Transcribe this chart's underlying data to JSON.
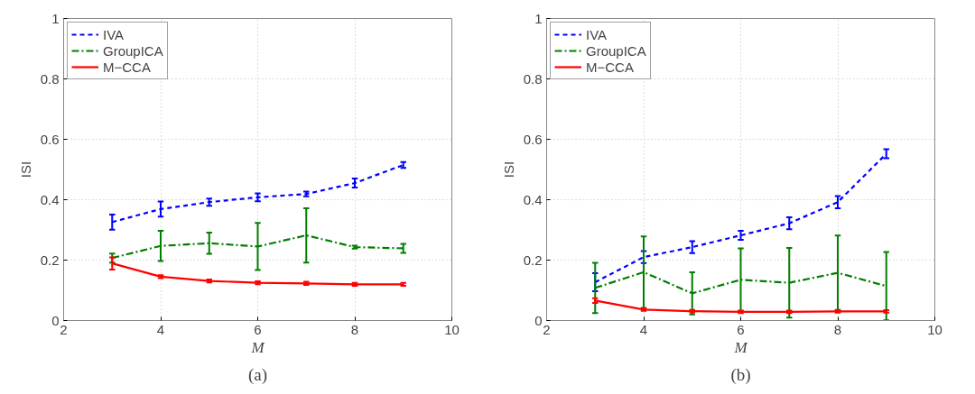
{
  "chart_data": [
    {
      "type": "line",
      "xlabel": "M",
      "ylabel": "ISI",
      "annotations": [
        "(a)"
      ],
      "x": [
        3,
        4,
        5,
        6,
        7,
        8,
        9
      ],
      "xlim": [
        2,
        10
      ],
      "xticks": [
        2,
        4,
        6,
        8,
        10
      ],
      "ylim": [
        0,
        1
      ],
      "yticks": [
        0,
        0.2,
        0.4,
        0.6,
        0.8,
        1
      ],
      "grid": true,
      "legend": "top left",
      "series": [
        {
          "name": "IVA",
          "color": "#0000ff",
          "line_style": "dashed",
          "values": [
            0.326,
            0.369,
            0.392,
            0.408,
            0.419,
            0.455,
            0.515
          ],
          "errors": [
            0.025,
            0.025,
            0.012,
            0.013,
            0.008,
            0.015,
            0.01
          ]
        },
        {
          "name": "GroupICA",
          "color": "#007f00",
          "line_style": "dashdot",
          "values": [
            0.207,
            0.247,
            0.256,
            0.245,
            0.282,
            0.243,
            0.239
          ],
          "errors": [
            0.015,
            0.05,
            0.035,
            0.078,
            0.09,
            0.005,
            0.015
          ]
        },
        {
          "name": "M−CCA",
          "color": "#ff0000",
          "line_style": "solid",
          "values": [
            0.189,
            0.145,
            0.131,
            0.125,
            0.123,
            0.12,
            0.12
          ],
          "errors": [
            0.02,
            0.005,
            0.005,
            0.005,
            0.005,
            0.005,
            0.005
          ]
        }
      ]
    },
    {
      "type": "line",
      "xlabel": "M",
      "ylabel": "ISI",
      "annotations": [
        "(b)"
      ],
      "x": [
        3,
        4,
        5,
        6,
        7,
        8,
        9
      ],
      "xlim": [
        2,
        10
      ],
      "xticks": [
        2,
        4,
        6,
        8,
        10
      ],
      "ylim": [
        0,
        1
      ],
      "yticks": [
        0,
        0.2,
        0.4,
        0.6,
        0.8,
        1
      ],
      "grid": true,
      "legend": "top left",
      "series": [
        {
          "name": "IVA",
          "color": "#0000ff",
          "line_style": "dashed",
          "values": [
            0.127,
            0.21,
            0.243,
            0.282,
            0.322,
            0.392,
            0.552
          ],
          "errors": [
            0.03,
            0.02,
            0.02,
            0.015,
            0.02,
            0.02,
            0.015
          ]
        },
        {
          "name": "GroupICA",
          "color": "#007f00",
          "line_style": "dashdot",
          "values": [
            0.108,
            0.16,
            0.09,
            0.135,
            0.125,
            0.158,
            0.114
          ],
          "errors": [
            0.083,
            0.118,
            0.07,
            0.104,
            0.115,
            0.123,
            0.113
          ]
        },
        {
          "name": "M−CCA",
          "color": "#ff0000",
          "line_style": "solid",
          "values": [
            0.066,
            0.036,
            0.031,
            0.029,
            0.029,
            0.03,
            0.03
          ],
          "errors": [
            0.008,
            0.004,
            0.004,
            0.004,
            0.004,
            0.004,
            0.004
          ]
        }
      ]
    }
  ]
}
